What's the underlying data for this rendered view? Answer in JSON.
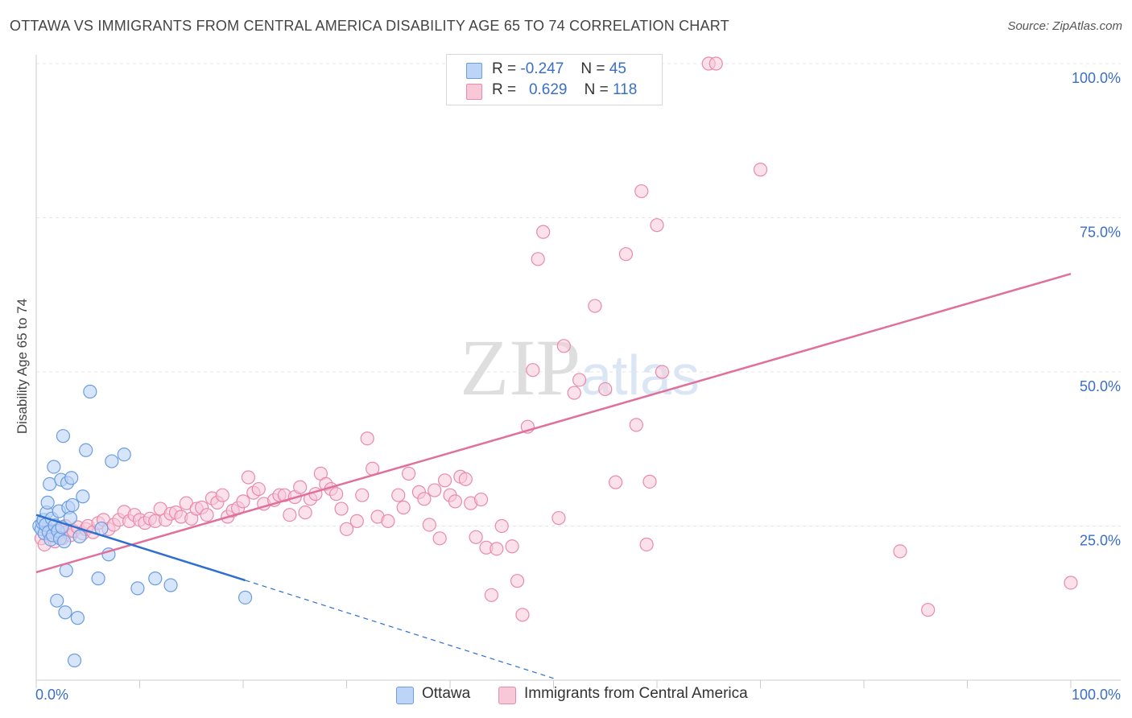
{
  "title": "OTTAWA VS IMMIGRANTS FROM CENTRAL AMERICA DISABILITY AGE 65 TO 74 CORRELATION CHART",
  "source": "Source: ZipAtlas.com",
  "legend": {
    "rows": [
      {
        "r_label": "R =",
        "r_value": "-0.247",
        "n_label": "N =",
        "n_value": "45"
      },
      {
        "r_label": "R =",
        "r_value": "0.629",
        "n_label": "N =",
        "n_value": "118"
      }
    ]
  },
  "bottom_legend": [
    "Ottawa",
    "Immigrants from Central America"
  ],
  "colors": {
    "ottawa_fill": "#bcd4f6",
    "ottawa_stroke": "#6b9de0",
    "ottawa_line": "#2e6fd0",
    "immigrant_fill": "#f8c8d8",
    "immigrant_stroke": "#e98aab",
    "immigrant_line": "#e0709a",
    "tick_label": "#3a6fc4",
    "grid": "#e4e4e4"
  },
  "chart_data": {
    "type": "scatter",
    "title": "OTTAWA VS IMMIGRANTS FROM CENTRAL AMERICA DISABILITY AGE 65 TO 74 CORRELATION CHART",
    "xlabel": "",
    "ylabel": "Disability Age 65 to 74",
    "xlim": [
      0,
      100
    ],
    "ylim": [
      0,
      100
    ],
    "x_tick_labels": [
      "0.0%",
      "100.0%"
    ],
    "y_ticks": [
      25,
      50,
      75,
      100
    ],
    "y_tick_labels": [
      "25.0%",
      "50.0%",
      "75.0%",
      "100.0%"
    ],
    "grid": true,
    "watermark": "ZIPatlas",
    "series": [
      {
        "name": "Ottawa",
        "x": [
          0.3,
          0.5,
          0.6,
          0.7,
          0.8,
          0.9,
          1.0,
          1.1,
          1.2,
          1.3,
          1.4,
          1.5,
          1.6,
          1.7,
          1.8,
          2.0,
          2.1,
          2.2,
          2.3,
          2.4,
          2.5,
          2.6,
          2.7,
          2.8,
          2.9,
          3.0,
          3.1,
          3.3,
          3.4,
          3.5,
          3.7,
          4.0,
          4.2,
          4.5,
          4.8,
          5.2,
          6.0,
          6.3,
          7.0,
          7.3,
          8.5,
          9.8,
          11.5,
          13.0,
          20.2
        ],
        "y": [
          25.0,
          24.5,
          25.5,
          26.0,
          23.8,
          25.2,
          27.2,
          28.8,
          24.0,
          31.8,
          22.8,
          26.2,
          23.5,
          34.6,
          25.1,
          12.9,
          24.2,
          27.4,
          23.0,
          32.5,
          24.8,
          39.6,
          22.5,
          11.0,
          17.8,
          32.0,
          28.0,
          26.3,
          32.8,
          28.4,
          3.2,
          10.1,
          23.3,
          29.8,
          37.3,
          46.8,
          16.5,
          24.6,
          20.4,
          35.5,
          36.6,
          14.9,
          16.5,
          15.4,
          13.4
        ],
        "trend": {
          "x": [
            0,
            20.2
          ],
          "y": [
            26.8,
            16.2
          ],
          "dashed_to": {
            "x": 50.0,
            "y": 0.3
          }
        }
      },
      {
        "name": "Immigrants from Central America",
        "x": [
          0.5,
          0.8,
          1.0,
          1.5,
          1.8,
          2.0,
          2.3,
          2.5,
          2.8,
          3.0,
          3.3,
          3.6,
          4.0,
          4.5,
          4.8,
          5.0,
          5.5,
          6.0,
          6.5,
          7.0,
          7.5,
          8.0,
          8.5,
          9.0,
          9.5,
          10.0,
          10.5,
          11.0,
          11.5,
          12.0,
          12.5,
          13.0,
          13.5,
          14.0,
          14.5,
          15.0,
          15.5,
          16.0,
          16.5,
          17.0,
          17.5,
          18.0,
          18.5,
          19.0,
          19.5,
          20.0,
          20.5,
          21.0,
          21.5,
          22.0,
          23.0,
          23.5,
          24.0,
          24.5,
          25.0,
          25.5,
          26.0,
          26.5,
          27.0,
          27.5,
          28.0,
          28.5,
          29.0,
          29.5,
          30.0,
          31.0,
          31.5,
          32.0,
          32.5,
          33.0,
          34.0,
          35.0,
          35.5,
          36.0,
          37.0,
          37.5,
          38.0,
          38.5,
          39.0,
          39.5,
          40.0,
          40.5,
          41.0,
          41.5,
          42.0,
          42.5,
          43.0,
          43.5,
          44.0,
          44.5,
          45.0,
          46.0,
          46.5,
          47.0,
          47.5,
          48.0,
          48.5,
          49.0,
          50.5,
          51.0,
          52.0,
          52.5,
          54.0,
          55.0,
          56.0,
          57.0,
          58.0,
          58.5,
          59.0,
          59.3,
          60.0,
          60.5,
          65.0,
          65.7,
          70.0,
          83.5,
          86.2,
          100.0
        ],
        "y": [
          23.0,
          22.0,
          24.5,
          24.0,
          22.5,
          23.5,
          24.5,
          23.0,
          25.0,
          24.0,
          23.5,
          24.2,
          24.8,
          23.8,
          24.5,
          25.0,
          24.0,
          25.5,
          26.0,
          24.5,
          25.2,
          26.0,
          27.3,
          25.8,
          26.8,
          26.0,
          25.5,
          26.2,
          25.8,
          27.8,
          26.0,
          27.0,
          27.2,
          26.5,
          28.7,
          26.2,
          27.8,
          28.0,
          26.8,
          29.5,
          28.8,
          30.0,
          26.5,
          27.5,
          27.9,
          29.0,
          32.9,
          30.4,
          31.0,
          28.6,
          29.2,
          30.0,
          30.0,
          26.8,
          29.7,
          31.3,
          27.2,
          29.4,
          30.2,
          33.5,
          31.8,
          31.0,
          30.2,
          27.8,
          24.5,
          25.8,
          30.0,
          39.2,
          34.3,
          26.5,
          25.8,
          30.0,
          28.0,
          33.5,
          30.5,
          29.4,
          25.2,
          30.8,
          23.0,
          32.4,
          30.0,
          29.0,
          33.0,
          32.6,
          28.7,
          23.2,
          29.3,
          21.5,
          13.8,
          21.3,
          25.0,
          21.7,
          16.1,
          10.6,
          41.1,
          50.3,
          68.3,
          72.7,
          26.3,
          54.2,
          46.6,
          48.7,
          60.7,
          47.2,
          32.1,
          69.1,
          41.4,
          79.3,
          22.0,
          32.2,
          73.8,
          50.0,
          100.0,
          100.0,
          82.8,
          20.9,
          11.4,
          15.8
        ],
        "trend": {
          "x": [
            0,
            100
          ],
          "y": [
            17.5,
            65.9
          ]
        }
      }
    ]
  }
}
